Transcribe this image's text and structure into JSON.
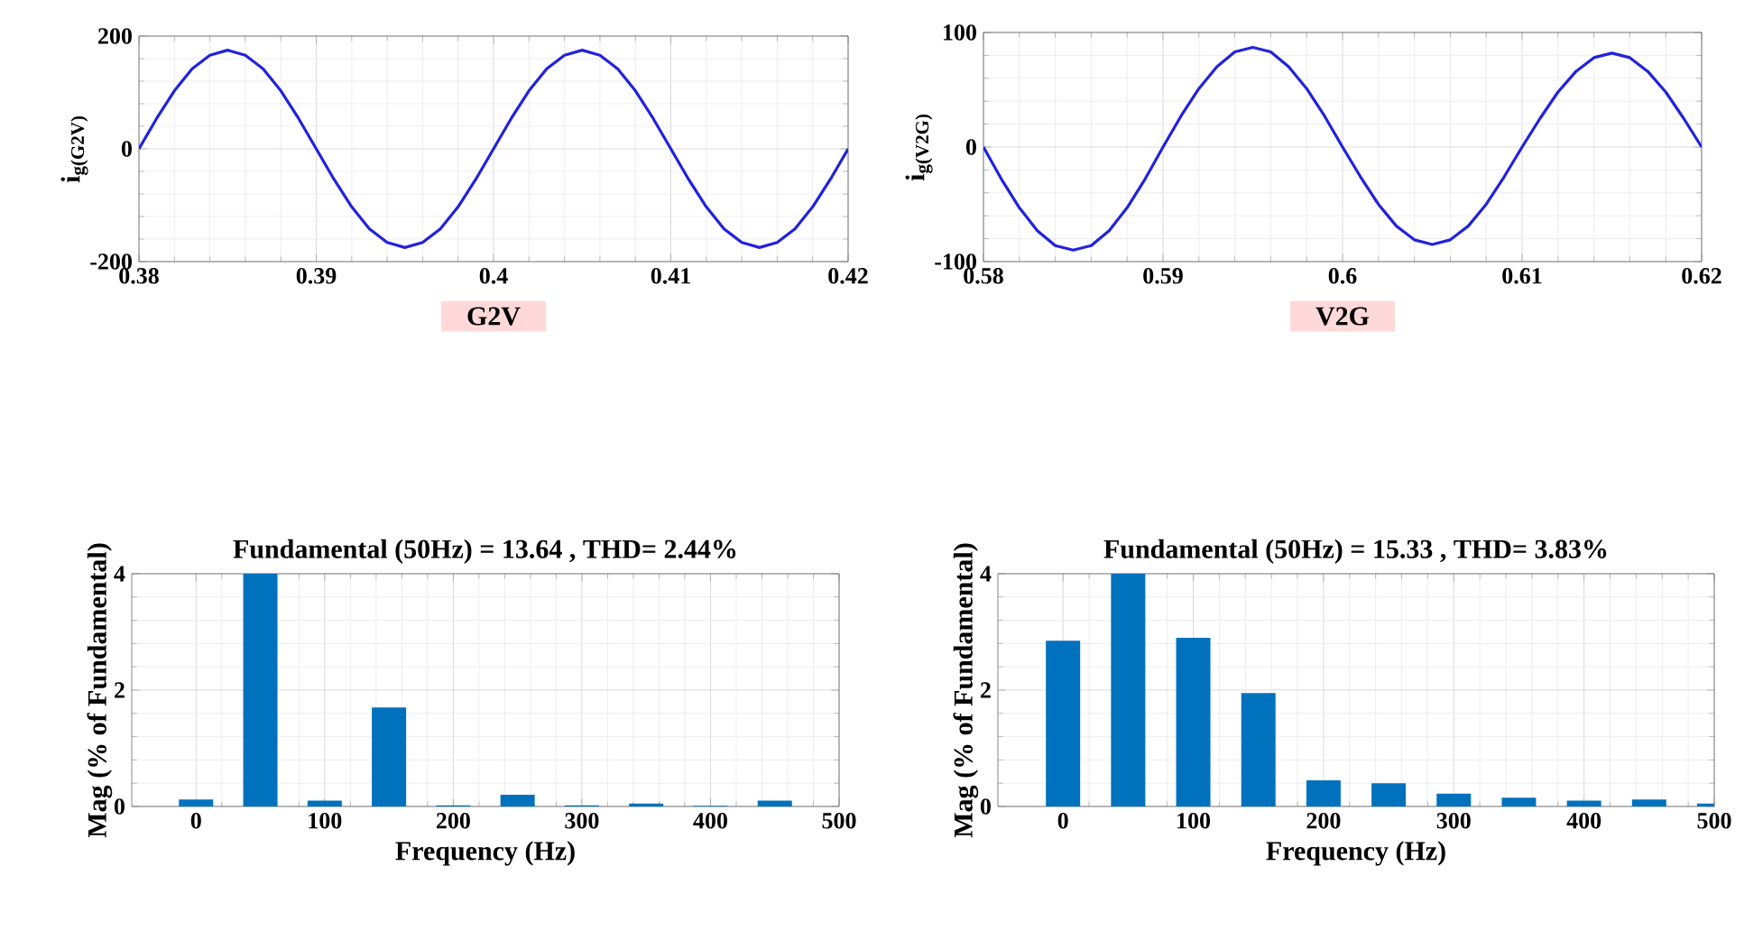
{
  "chart_data": [
    {
      "type": "line",
      "xlabel": "G2V",
      "ylabel": "i$_{g(G2V)}$",
      "color": "#2222dd",
      "grid": true,
      "x": [
        0.38,
        0.381,
        0.382,
        0.383,
        0.384,
        0.385,
        0.386,
        0.387,
        0.388,
        0.389,
        0.39,
        0.391,
        0.392,
        0.393,
        0.394,
        0.395,
        0.396,
        0.397,
        0.398,
        0.399,
        0.4,
        0.401,
        0.402,
        0.403,
        0.404,
        0.405,
        0.406,
        0.407,
        0.408,
        0.409,
        0.41,
        0.411,
        0.412,
        0.413,
        0.414,
        0.415,
        0.416,
        0.417,
        0.418,
        0.419,
        0.42
      ],
      "values": [
        0,
        54,
        103,
        142,
        166,
        175,
        166,
        142,
        103,
        54,
        0,
        -54,
        -103,
        -142,
        -166,
        -175,
        -166,
        -142,
        -103,
        -54,
        0,
        54,
        103,
        142,
        166,
        175,
        166,
        142,
        103,
        54,
        0,
        -54,
        -103,
        -142,
        -166,
        -175,
        -166,
        -142,
        -103,
        -54,
        0
      ],
      "xlim": [
        0.38,
        0.42
      ],
      "xticks": [
        0.38,
        0.39,
        0.4,
        0.41,
        0.42
      ],
      "ylim": [
        -200,
        200
      ],
      "yticks": [
        -200,
        0,
        200
      ]
    },
    {
      "type": "line",
      "xlabel": "V2G",
      "ylabel": "i$_{g(V2G)}$",
      "color": "#2222dd",
      "grid": true,
      "x": [
        0.58,
        0.581,
        0.582,
        0.583,
        0.584,
        0.585,
        0.586,
        0.587,
        0.588,
        0.589,
        0.59,
        0.591,
        0.592,
        0.593,
        0.594,
        0.595,
        0.596,
        0.597,
        0.598,
        0.599,
        0.6,
        0.601,
        0.602,
        0.603,
        0.604,
        0.605,
        0.606,
        0.607,
        0.608,
        0.609,
        0.61,
        0.611,
        0.612,
        0.613,
        0.614,
        0.615,
        0.616,
        0.617,
        0.618,
        0.619,
        0.62
      ],
      "values": [
        0,
        -28,
        -53,
        -73,
        -86,
        -90,
        -86,
        -73,
        -53,
        -28,
        0,
        27,
        51,
        70,
        83,
        87,
        83,
        70,
        51,
        27,
        0,
        -26,
        -50,
        -69,
        -81,
        -85,
        -81,
        -69,
        -50,
        -26,
        0,
        25,
        48,
        66,
        78,
        82,
        78,
        66,
        48,
        25,
        0
      ],
      "xlim": [
        0.58,
        0.62
      ],
      "xticks": [
        0.58,
        0.59,
        0.6,
        0.61,
        0.62
      ],
      "ylim": [
        -100,
        100
      ],
      "yticks": [
        -100,
        0,
        100
      ]
    },
    {
      "type": "bar",
      "title": "Fundamental (50Hz) = 13.64 , THD= 2.44%",
      "xlabel": "Frequency (Hz)",
      "ylabel": "Mag (% of Fundamental)",
      "color": "#0072bd",
      "grid": true,
      "x": [
        0,
        50,
        100,
        150,
        200,
        250,
        300,
        350,
        400,
        450,
        500
      ],
      "values": [
        0.12,
        4,
        0.1,
        1.7,
        0.02,
        0.2,
        0.02,
        0.05,
        0.01,
        0.1,
        0
      ],
      "xlim": [
        -50,
        500
      ],
      "xticks": [
        0,
        100,
        200,
        300,
        400,
        500
      ],
      "ylim": [
        0,
        4
      ],
      "yticks": [
        0,
        2,
        4
      ]
    },
    {
      "type": "bar",
      "title": "Fundamental (50Hz) = 15.33 , THD= 3.83%",
      "xlabel": "Frequency (Hz)",
      "ylabel": "Mag (% of Fundamental)",
      "color": "#0072bd",
      "grid": true,
      "x": [
        0,
        50,
        100,
        150,
        200,
        250,
        300,
        350,
        400,
        450,
        500
      ],
      "values": [
        2.85,
        4,
        2.9,
        1.95,
        0.45,
        0.4,
        0.22,
        0.15,
        0.1,
        0.12,
        0.05
      ],
      "xlim": [
        -50,
        500
      ],
      "xticks": [
        0,
        100,
        200,
        300,
        400,
        500
      ],
      "ylim": [
        0,
        4
      ],
      "yticks": [
        0,
        2,
        4
      ]
    }
  ]
}
